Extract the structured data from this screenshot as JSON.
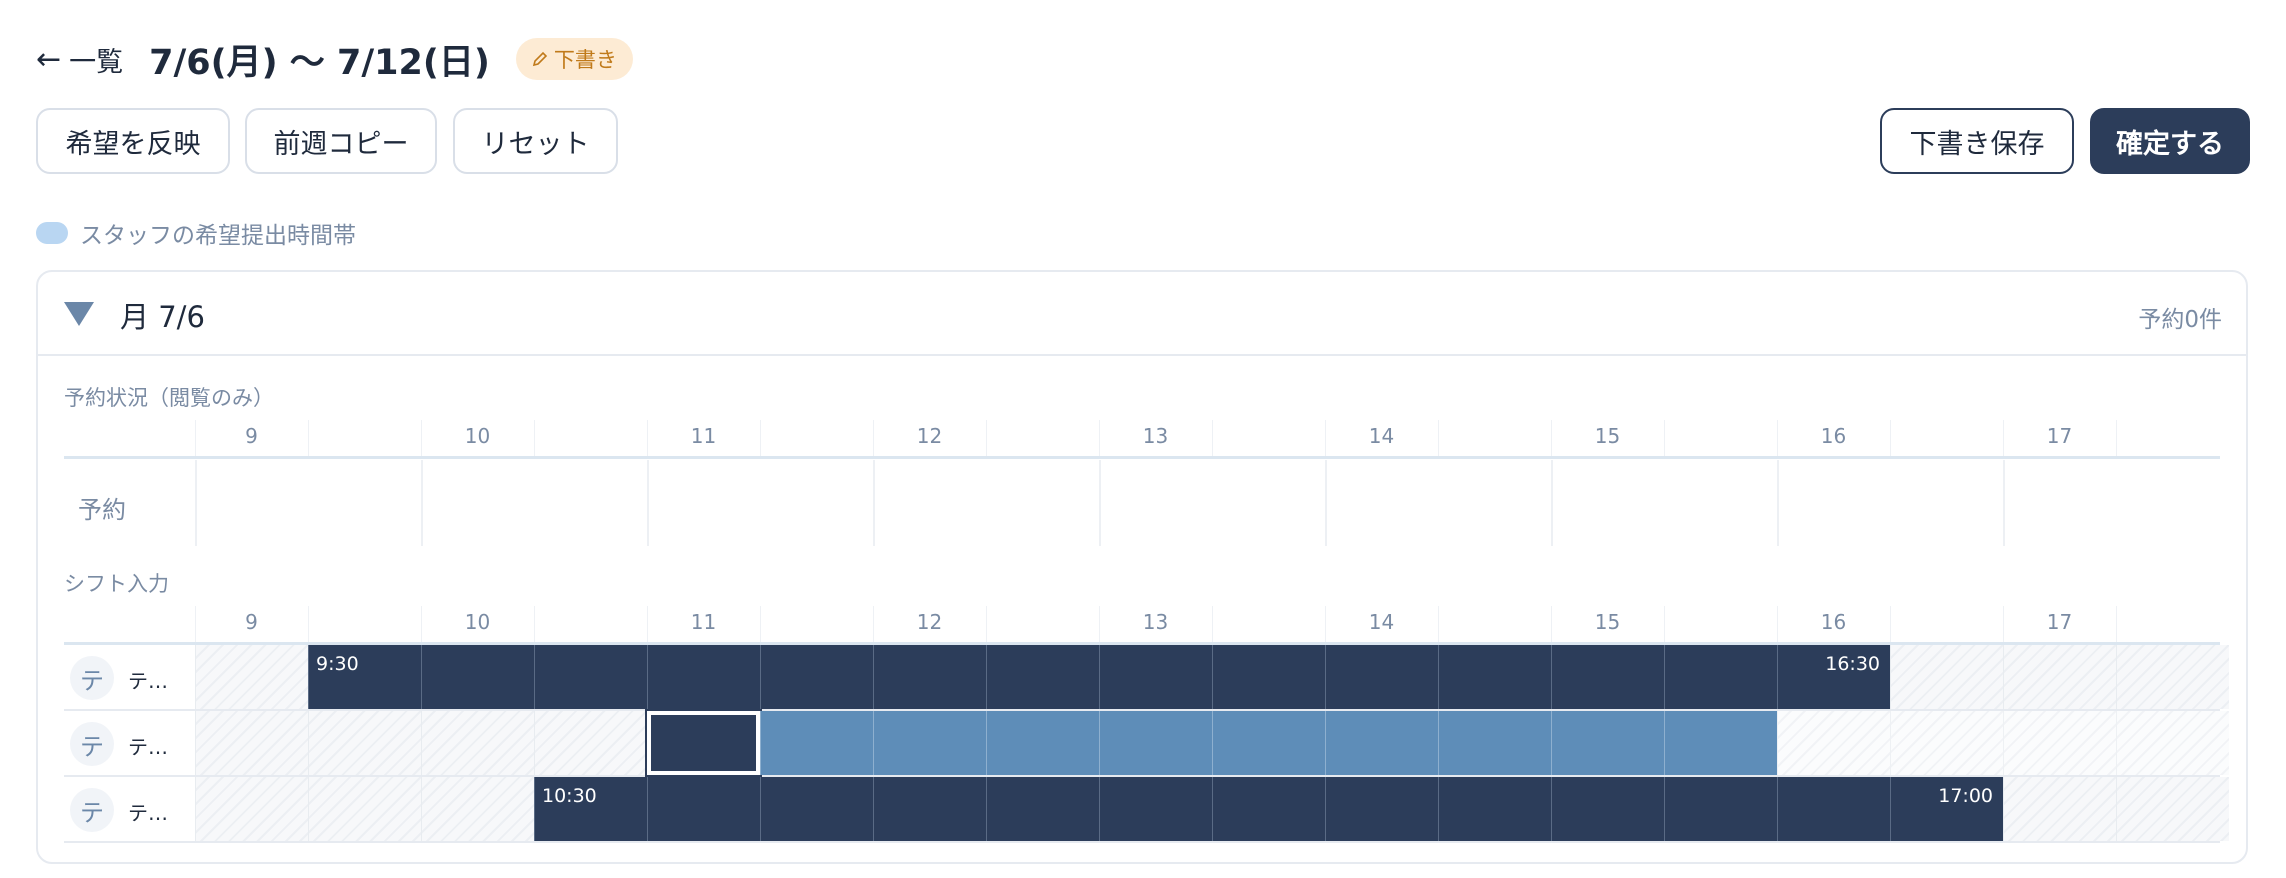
{
  "header": {
    "back_arrow": "←",
    "back_label": "一覧",
    "week_range": "7/6(月) 〜 7/12(日)",
    "draft_badge_icon": "pencil-icon",
    "draft_badge_label": "下書き"
  },
  "toolbar": {
    "apply_requests": "希望を反映",
    "copy_last_week": "前週コピー",
    "reset": "リセット",
    "save_draft": "下書き保存",
    "confirm": "確定する"
  },
  "legend": {
    "label": "スタッフの希望提出時間帯",
    "color": "#b9d6f2"
  },
  "day": {
    "label": "月 7/6",
    "reservation_count": "予約0件",
    "reservations_section": "予約状況（閲覧のみ）",
    "reservation_row_label": "予約",
    "shift_section": "シフト入力",
    "hours": [
      "9",
      "10",
      "11",
      "12",
      "13",
      "14",
      "15",
      "16",
      "17"
    ],
    "staff": [
      {
        "avatar": "テ",
        "name": "テ…",
        "start_label": "9:30",
        "end_label": "16:30"
      },
      {
        "avatar": "テ",
        "name": "テ…"
      },
      {
        "avatar": "テ",
        "name": "テ…",
        "start_label": "10:30",
        "end_label": "17:00"
      }
    ]
  },
  "colors": {
    "primary": "#2c3d5a",
    "preference": "#5e8db8",
    "badge_bg": "#fdebd4",
    "badge_text": "#c07a1a",
    "muted_text": "#7a8ba3"
  }
}
